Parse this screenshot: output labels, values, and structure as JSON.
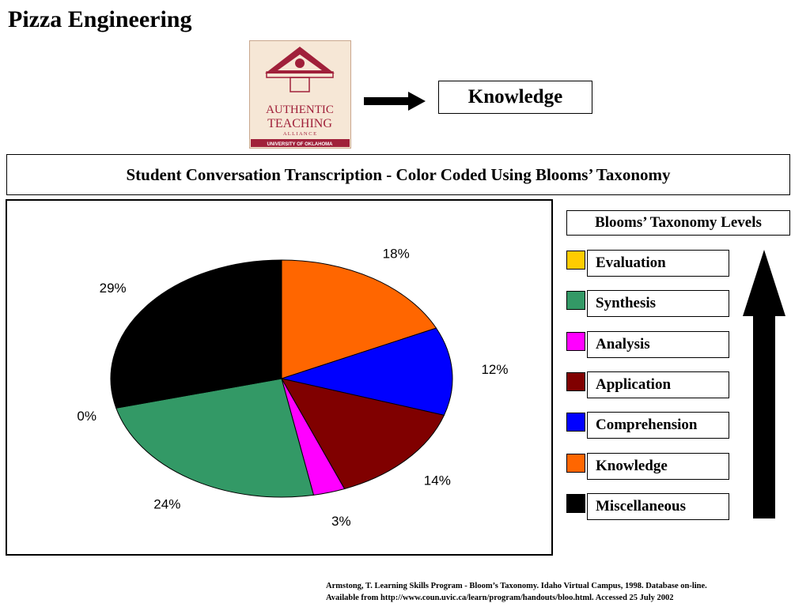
{
  "page": {
    "title": "Pizza Engineering",
    "target_label": "Knowledge",
    "subtitle": "Student Conversation Transcription - Color Coded Using Blooms’ Taxonomy"
  },
  "logo": {
    "line1": "AUTHENTIC",
    "line2": "TEACHING",
    "line3": "A L L I A N C E",
    "line4": "UNIVERSITY OF OKLAHOMA",
    "colors": {
      "brand": "#a0203a",
      "background": "#f6e7d6"
    }
  },
  "chart_data": {
    "type": "pie",
    "categories": [
      "Evaluation",
      "Synthesis",
      "Analysis",
      "Application",
      "Comprehension",
      "Knowledge",
      "Miscellaneous"
    ],
    "values": [
      0,
      24,
      3,
      14,
      12,
      18,
      29
    ],
    "value_labels": [
      "0%",
      "24%",
      "3%",
      "14%",
      "12%",
      "18%",
      "29%"
    ],
    "colors": [
      "#ffcc00",
      "#339966",
      "#ff00ff",
      "#800000",
      "#0000ff",
      "#ff6600",
      "#000000"
    ],
    "draw_order": [
      "Knowledge",
      "Comprehension",
      "Application",
      "Analysis",
      "Synthesis",
      "Evaluation",
      "Miscellaneous"
    ]
  },
  "legend": {
    "title": "Blooms’ Taxonomy Levels",
    "items": [
      {
        "label": "Evaluation",
        "color": "#ffcc00"
      },
      {
        "label": "Synthesis",
        "color": "#339966"
      },
      {
        "label": "Analysis",
        "color": "#ff00ff"
      },
      {
        "label": "Application",
        "color": "#800000"
      },
      {
        "label": "Comprehension",
        "color": "#0000ff"
      },
      {
        "label": "Knowledge",
        "color": "#ff6600"
      },
      {
        "label": "Miscellaneous",
        "color": "#000000"
      }
    ]
  },
  "citation": {
    "line1": "Armstong, T. Learning Skills Program - Bloom’s Taxonomy.  Idaho Virtual Campus, 1998.  Database on-line.",
    "line2": "Available from http://www.coun.uvic.ca/learn/program/handouts/bloo.html.  Accessed 25 July 2002"
  }
}
